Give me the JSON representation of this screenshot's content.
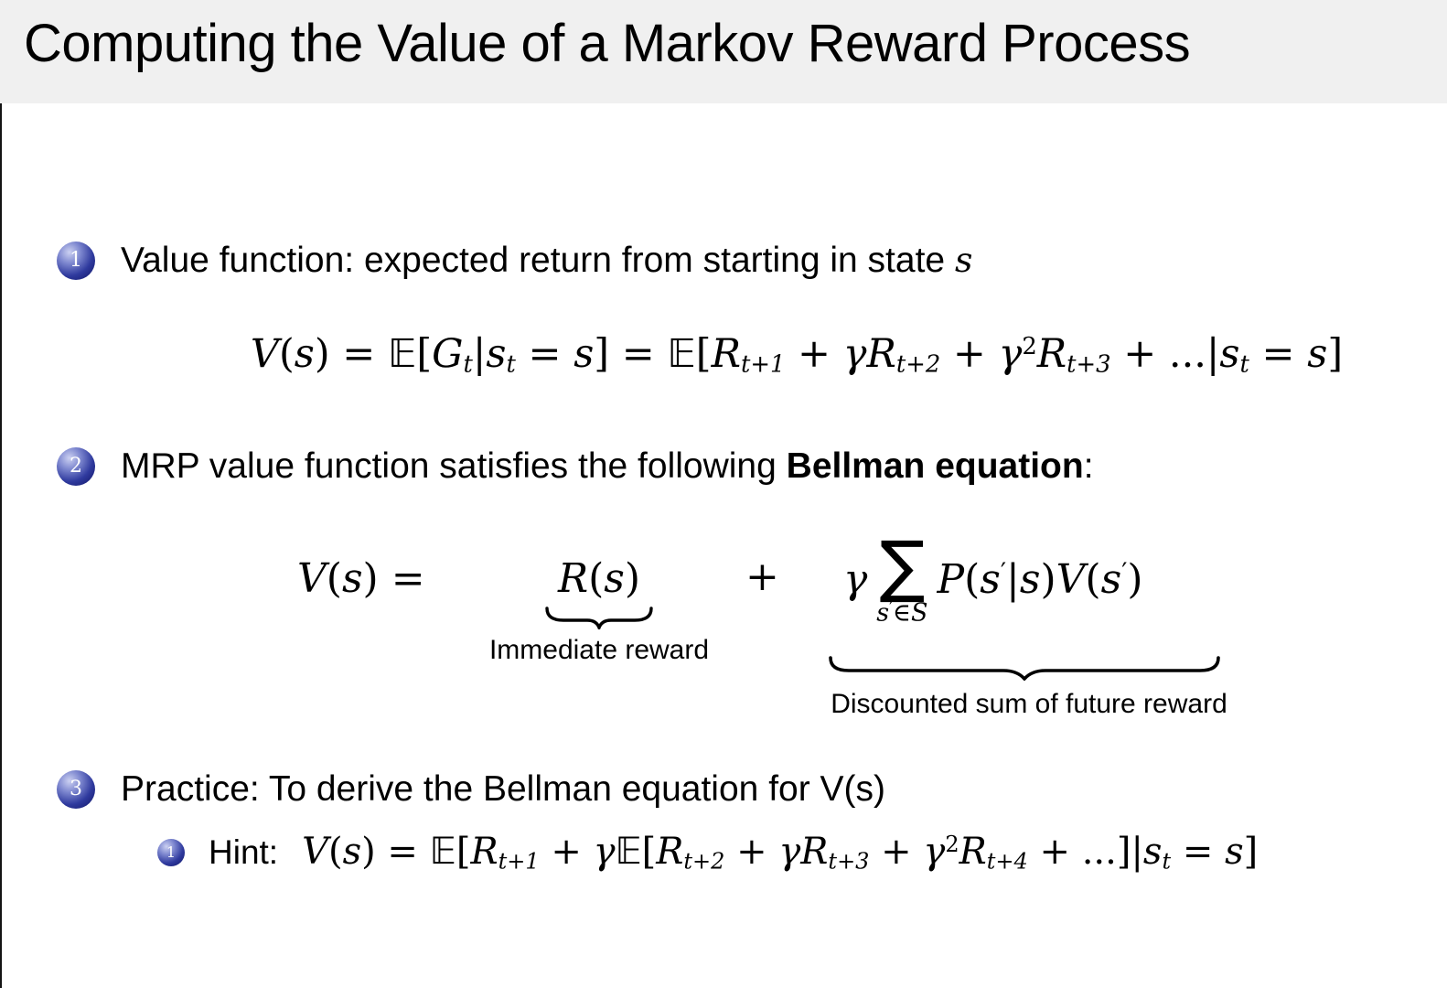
{
  "title": "Computing the Value of a Markov Reward Process",
  "item1": {
    "num": "1",
    "text": "Value function: expected return from starting in state ",
    "var": "s"
  },
  "eq_value": [
    {
      "s": "v",
      "x": "V"
    },
    {
      "s": "r",
      "x": "("
    },
    {
      "s": "v",
      "x": "s"
    },
    {
      "s": "r",
      "x": ") = "
    },
    {
      "s": "bb",
      "x": "𝔼"
    },
    {
      "s": "r",
      "x": "["
    },
    {
      "s": "v",
      "x": "G"
    },
    {
      "s": "sb",
      "x": "t"
    },
    {
      "s": "r",
      "x": "|"
    },
    {
      "s": "v",
      "x": "s"
    },
    {
      "s": "sb",
      "x": "t"
    },
    {
      "s": "r",
      "x": " = "
    },
    {
      "s": "v",
      "x": "s"
    },
    {
      "s": "r",
      "x": "] = "
    },
    {
      "s": "bb",
      "x": "𝔼"
    },
    {
      "s": "r",
      "x": "["
    },
    {
      "s": "v",
      "x": "R"
    },
    {
      "s": "sb",
      "x": "t+1"
    },
    {
      "s": "r",
      "x": " + "
    },
    {
      "s": "v",
      "x": "γ"
    },
    {
      "s": "v",
      "x": "R"
    },
    {
      "s": "sb",
      "x": "t+2"
    },
    {
      "s": "r",
      "x": " + "
    },
    {
      "s": "v",
      "x": "γ"
    },
    {
      "s": "sp",
      "x": "2"
    },
    {
      "s": "v",
      "x": "R"
    },
    {
      "s": "sb",
      "x": "t+3"
    },
    {
      "s": "r",
      "x": " + ...|"
    },
    {
      "s": "v",
      "x": "s"
    },
    {
      "s": "sb",
      "x": "t"
    },
    {
      "s": "r",
      "x": " = "
    },
    {
      "s": "v",
      "x": "s"
    },
    {
      "s": "r",
      "x": "]"
    }
  ],
  "item2": {
    "num": "2",
    "pre": "MRP value function satisfies the following ",
    "bold": "Bellman equation",
    "post": ":"
  },
  "bellman": {
    "lhs": [
      {
        "s": "v",
        "x": "V"
      },
      {
        "s": "r",
        "x": "("
      },
      {
        "s": "v",
        "x": "s"
      },
      {
        "s": "r",
        "x": ") ="
      }
    ],
    "term1": [
      {
        "s": "v",
        "x": "R"
      },
      {
        "s": "r",
        "x": "("
      },
      {
        "s": "v",
        "x": "s"
      },
      {
        "s": "r",
        "x": ")"
      }
    ],
    "plus": "+",
    "gamma": "γ",
    "sum": "∑",
    "sum_sub": [
      {
        "s": "v",
        "x": "s"
      },
      {
        "s": "pr",
        "x": "′"
      },
      {
        "s": "r",
        "x": "∈"
      },
      {
        "s": "v",
        "x": "S"
      }
    ],
    "term2": [
      {
        "s": "v",
        "x": "P"
      },
      {
        "s": "r",
        "x": "("
      },
      {
        "s": "v",
        "x": "s"
      },
      {
        "s": "pr",
        "x": "′"
      },
      {
        "s": "r",
        "x": "|"
      },
      {
        "s": "v",
        "x": "s"
      },
      {
        "s": "r",
        "x": ")"
      },
      {
        "s": "v",
        "x": "V"
      },
      {
        "s": "r",
        "x": "("
      },
      {
        "s": "v",
        "x": "s"
      },
      {
        "s": "pr",
        "x": "′"
      },
      {
        "s": "r",
        "x": ")"
      }
    ],
    "label1": "Immediate reward",
    "label2": "Discounted sum of future reward"
  },
  "item3": {
    "num": "3",
    "text": "Practice: To derive the Bellman equation for V(s)"
  },
  "hint": {
    "num": "1",
    "label": "Hint:",
    "eq": [
      {
        "s": "v",
        "x": "V"
      },
      {
        "s": "r",
        "x": "("
      },
      {
        "s": "v",
        "x": "s"
      },
      {
        "s": "r",
        "x": ") = "
      },
      {
        "s": "bb",
        "x": "𝔼"
      },
      {
        "s": "r",
        "x": "["
      },
      {
        "s": "v",
        "x": "R"
      },
      {
        "s": "sb",
        "x": "t+1"
      },
      {
        "s": "r",
        "x": " + "
      },
      {
        "s": "v",
        "x": "γ"
      },
      {
        "s": "bb",
        "x": "𝔼"
      },
      {
        "s": "r",
        "x": "["
      },
      {
        "s": "v",
        "x": "R"
      },
      {
        "s": "sb",
        "x": "t+2"
      },
      {
        "s": "r",
        "x": " + "
      },
      {
        "s": "v",
        "x": "γ"
      },
      {
        "s": "v",
        "x": "R"
      },
      {
        "s": "sb",
        "x": "t+3"
      },
      {
        "s": "r",
        "x": " + "
      },
      {
        "s": "v",
        "x": "γ"
      },
      {
        "s": "sp",
        "x": "2"
      },
      {
        "s": "v",
        "x": "R"
      },
      {
        "s": "sb",
        "x": "t+4"
      },
      {
        "s": "r",
        "x": " + ...]|"
      },
      {
        "s": "v",
        "x": "s"
      },
      {
        "s": "sb",
        "x": "t"
      },
      {
        "s": "r",
        "x": " = "
      },
      {
        "s": "v",
        "x": "s"
      },
      {
        "s": "r",
        "x": "]"
      }
    ]
  },
  "colors": {
    "header_bg": "#f0f0f0",
    "body_bg": "#ffffff",
    "bullet_ball": "#1c2180",
    "text": "#000000"
  }
}
